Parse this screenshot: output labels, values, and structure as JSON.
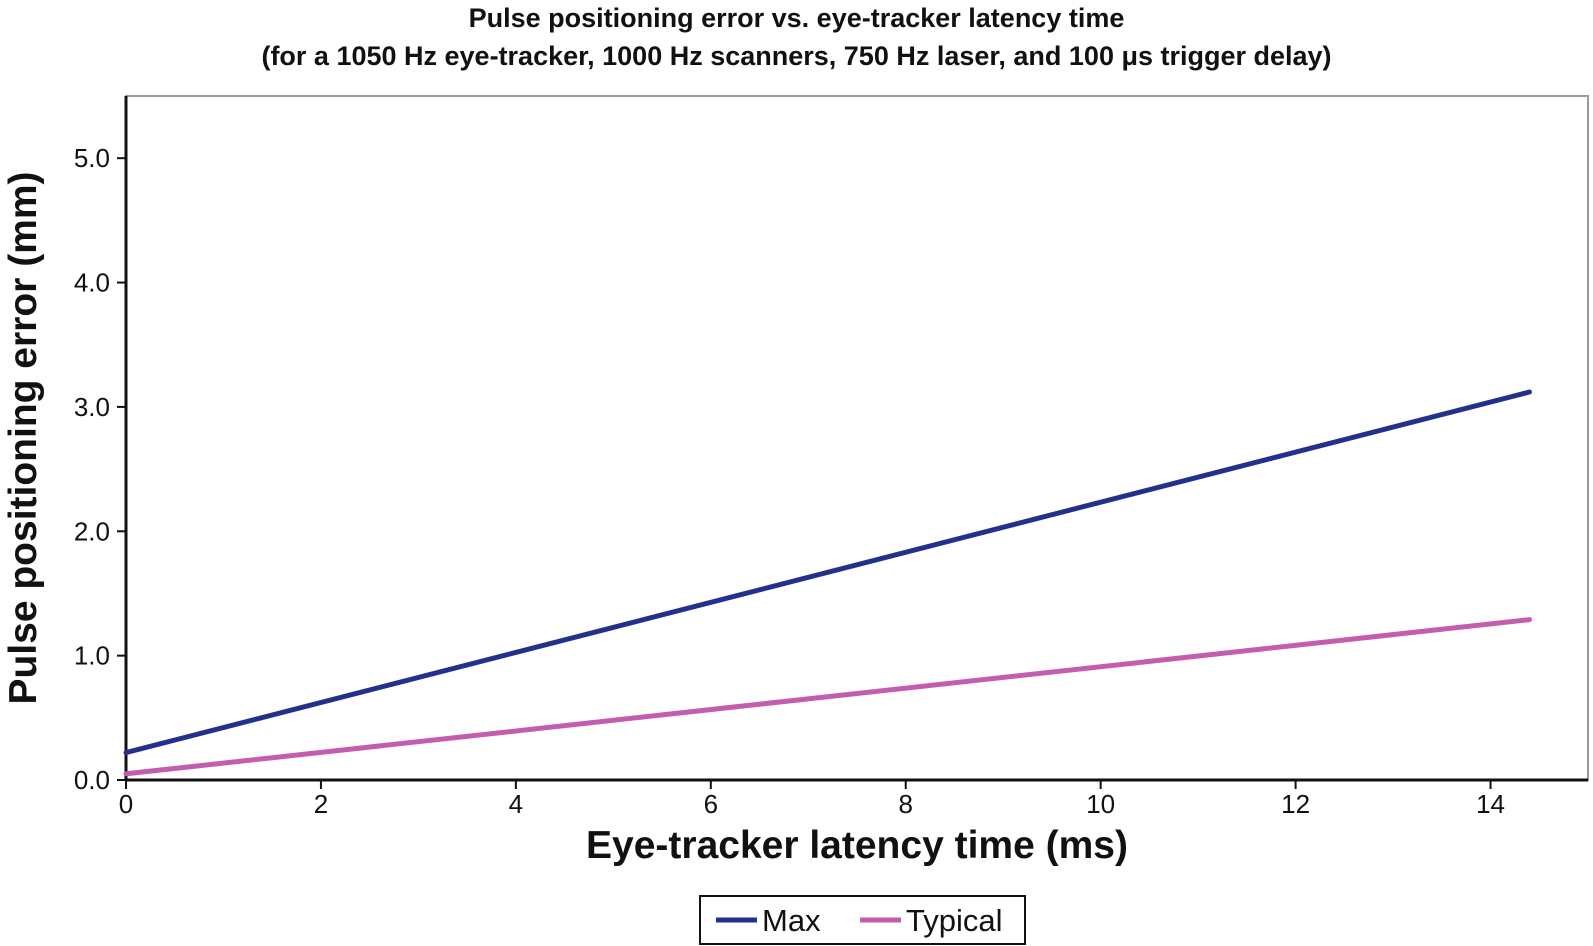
{
  "chart_data": {
    "type": "line",
    "title": "Pulse positioning error vs. eye-tracker latency time",
    "subtitle": "(for a 1050 Hz eye-tracker, 1000 Hz scanners, 750 Hz laser, and 100 μs trigger delay)",
    "xlabel": "Eye-tracker latency time (ms)",
    "ylabel": "Pulse positioning error (mm)",
    "xlim": [
      0,
      15
    ],
    "ylim": [
      0,
      5.5
    ],
    "x_ticks": [
      "0",
      "2",
      "4",
      "6",
      "8",
      "10",
      "12",
      "14"
    ],
    "y_ticks": [
      "0.0",
      "1.0",
      "2.0",
      "3.0",
      "4.0",
      "5.0"
    ],
    "grid": false,
    "legend_position": "bottom-center",
    "series": [
      {
        "name": "Max",
        "color": "#23318c",
        "x": [
          0,
          14.4
        ],
        "values": [
          0.22,
          3.12
        ]
      },
      {
        "name": "Typical",
        "color": "#c45dae",
        "x": [
          0,
          14.4
        ],
        "values": [
          0.05,
          1.29
        ]
      }
    ]
  }
}
